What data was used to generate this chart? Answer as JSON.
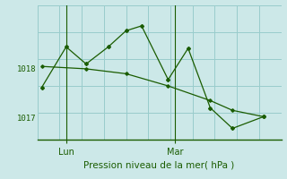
{
  "xlabel": "Pression niveau de la mer( hPa )",
  "background_color": "#cce8e8",
  "grid_color": "#99cccc",
  "line_color": "#1a5c00",
  "ylim": [
    1016.55,
    1019.3
  ],
  "xlim": [
    0,
    11
  ],
  "yticks": [
    1017,
    1018
  ],
  "day_positions": [
    1.3,
    6.2
  ],
  "day_labels": [
    "Lun",
    "Mar"
  ],
  "series1_x": [
    0.2,
    1.3,
    2.2,
    3.2,
    4.0,
    4.7,
    5.9,
    6.8,
    7.8,
    8.8,
    10.2
  ],
  "series1_y": [
    1017.62,
    1018.45,
    1018.1,
    1018.45,
    1018.78,
    1018.88,
    1017.78,
    1018.42,
    1017.2,
    1016.78,
    1017.02
  ],
  "series2_x": [
    0.2,
    2.2,
    4.0,
    5.9,
    7.8,
    8.8,
    10.2
  ],
  "series2_y": [
    1018.05,
    1018.0,
    1017.9,
    1017.65,
    1017.35,
    1017.15,
    1017.02
  ],
  "n_vgrid": 12,
  "n_hgrid": 6
}
